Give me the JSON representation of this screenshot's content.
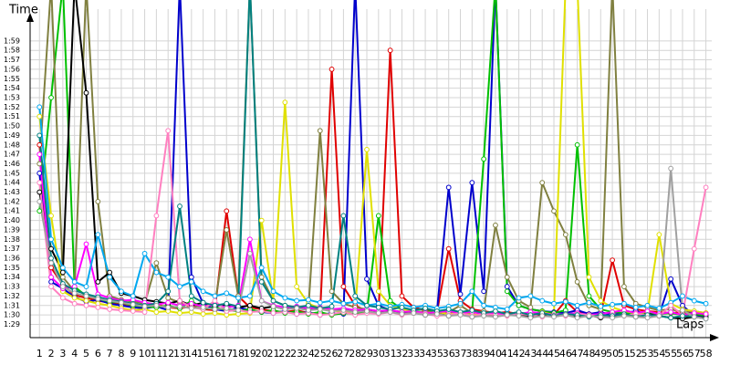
{
  "chart_data": {
    "type": "line",
    "y_label": "Time",
    "x_label": "Laps",
    "grid": true,
    "x": [
      1,
      2,
      3,
      4,
      5,
      6,
      7,
      8,
      9,
      10,
      11,
      12,
      13,
      14,
      15,
      16,
      17,
      18,
      19,
      20,
      21,
      22,
      23,
      24,
      25,
      26,
      27,
      28,
      29,
      30,
      31,
      32,
      33,
      34,
      35,
      36,
      37,
      38,
      39,
      40,
      41,
      42,
      43,
      44,
      45,
      46,
      47,
      48,
      49,
      50,
      51,
      52,
      53,
      54,
      55,
      56,
      57,
      58
    ],
    "xlim": [
      0.2,
      58.5
    ],
    "xticks": [
      1,
      2,
      3,
      4,
      5,
      6,
      7,
      8,
      9,
      10,
      11,
      12,
      13,
      14,
      15,
      16,
      17,
      18,
      19,
      20,
      21,
      22,
      23,
      24,
      25,
      26,
      27,
      28,
      29,
      30,
      31,
      32,
      33,
      34,
      35,
      36,
      37,
      38,
      39,
      40,
      41,
      42,
      43,
      44,
      45,
      46,
      47,
      48,
      49,
      50,
      51,
      52,
      53,
      54,
      55,
      56,
      57,
      58
    ],
    "ylim": [
      87.6,
      121.4
    ],
    "yticks": [
      {
        "value": 89,
        "label": "1:29"
      },
      {
        "value": 90,
        "label": "1:30"
      },
      {
        "value": 91,
        "label": "1:31"
      },
      {
        "value": 92,
        "label": "1:32"
      },
      {
        "value": 93,
        "label": "1:33"
      },
      {
        "value": 94,
        "label": "1:34"
      },
      {
        "value": 95,
        "label": "1:35"
      },
      {
        "value": 96,
        "label": "1:36"
      },
      {
        "value": 97,
        "label": "1:37"
      },
      {
        "value": 98,
        "label": "1:38"
      },
      {
        "value": 99,
        "label": "1:39"
      },
      {
        "value": 100,
        "label": "1:40"
      },
      {
        "value": 101,
        "label": "1:41"
      },
      {
        "value": 102,
        "label": "1:42"
      },
      {
        "value": 103,
        "label": "1:43"
      },
      {
        "value": 104,
        "label": "1:44"
      },
      {
        "value": 105,
        "label": "1:45"
      },
      {
        "value": 106,
        "label": "1:46"
      },
      {
        "value": 107,
        "label": "1:47"
      },
      {
        "value": 108,
        "label": "1:48"
      },
      {
        "value": 109,
        "label": "1:49"
      },
      {
        "value": 110,
        "label": "1:50"
      },
      {
        "value": 111,
        "label": "1:51"
      },
      {
        "value": 112,
        "label": "1:52"
      },
      {
        "value": 113,
        "label": "1:53"
      },
      {
        "value": 114,
        "label": "1:54"
      },
      {
        "value": 115,
        "label": "1:55"
      },
      {
        "value": 116,
        "label": "1:56"
      },
      {
        "value": 117,
        "label": "1:57"
      },
      {
        "value": 118,
        "label": "1:58"
      },
      {
        "value": 119,
        "label": "1:59"
      }
    ],
    "series": [
      {
        "color": "#e00000",
        "values": [
          108,
          95,
          93.2,
          92.1,
          91.8,
          91.5,
          91.3,
          91.2,
          91.0,
          90.9,
          91.1,
          90.8,
          90.7,
          90.9,
          90.6,
          90.5,
          101,
          92.0,
          90.8,
          90.6,
          90.4,
          90.3,
          90.5,
          90.2,
          90.1,
          116,
          93,
          91.0,
          90.4,
          90.2,
          118,
          92,
          90.8,
          90.5,
          90.3,
          97,
          91.5,
          90.6,
          90.4,
          90.2,
          90.3,
          90.1,
          90.0,
          90.2,
          90.0,
          91.5,
          90.3,
          90.1,
          90.0,
          95.8,
          91.0,
          90.6,
          90.4,
          90.3,
          90.2,
          90.3,
          90.1,
          90.0
        ]
      },
      {
        "color": "#0000cc",
        "values": [
          105,
          93.5,
          92.8,
          91.9,
          91.4,
          91.6,
          91.2,
          91.0,
          90.8,
          90.7,
          90.9,
          90.5,
          125,
          94,
          91.2,
          90.6,
          90.4,
          90.8,
          90.5,
          90.3,
          90.2,
          90.4,
          90.1,
          90.3,
          90.0,
          90.2,
          90.1,
          125,
          93.8,
          91.0,
          90.5,
          90.3,
          90.2,
          90.1,
          90.4,
          103.5,
          92.2,
          104,
          92.5,
          125,
          93,
          91.0,
          90.6,
          90.4,
          90.3,
          90.2,
          90.5,
          90.1,
          90.3,
          90.0,
          90.2,
          90.4,
          90.1,
          90.0,
          93.8,
          91.0,
          89.9,
          89.8
        ]
      },
      {
        "color": "#00c000",
        "values": [
          101,
          113,
          125,
          93,
          92.0,
          91.7,
          91.4,
          91.3,
          91.0,
          90.9,
          90.8,
          91.0,
          90.7,
          91.5,
          90.6,
          90.8,
          90.5,
          90.4,
          90.6,
          90.3,
          90.5,
          90.2,
          90.4,
          90.1,
          90.3,
          90.0,
          90.2,
          90.1,
          90.3,
          100.5,
          91.5,
          90.6,
          90.4,
          90.3,
          90.5,
          90.2,
          90.1,
          90.3,
          106.5,
          125,
          92.5,
          91.0,
          90.6,
          90.4,
          90.2,
          90.5,
          108,
          92,
          90.6,
          90.3,
          90.2,
          90.0,
          90.3,
          90.1,
          90.2,
          90.0,
          90.1,
          89.9
        ]
      },
      {
        "color": "#808040",
        "values": [
          106,
          125,
          94,
          92.5,
          125,
          102,
          92.0,
          91.6,
          91.4,
          91.2,
          95.5,
          91.8,
          91.3,
          91.0,
          90.9,
          91.1,
          99,
          92,
          125,
          94,
          91.5,
          91.0,
          90.8,
          90.6,
          109.5,
          92.5,
          91.2,
          90.8,
          90.6,
          90.4,
          90.5,
          90.3,
          90.2,
          90.4,
          90.1,
          90.3,
          91.0,
          90.2,
          90.4,
          99.5,
          94,
          91.5,
          90.8,
          104,
          101,
          98.5,
          93.5,
          91.0,
          90.6,
          125,
          93,
          91.2,
          90.8,
          90.5,
          90.6,
          90.3,
          90.4,
          90.2
        ]
      },
      {
        "color": "#000000",
        "values": [
          103,
          97,
          94.5,
          125,
          113.5,
          93.5,
          94.5,
          92.3,
          92.0,
          91.6,
          91.4,
          91.2,
          91.5,
          91.0,
          91.3,
          90.9,
          91.1,
          90.8,
          91.0,
          90.7,
          90.9,
          90.6,
          90.8,
          90.5,
          90.7,
          90.4,
          90.6,
          90.3,
          90.5,
          90.2,
          90.4,
          90.1,
          90.3,
          90.0,
          90.2,
          89.9,
          90.1,
          89.8,
          90.0,
          89.9,
          90.1,
          90.0,
          89.8,
          90.0,
          89.9,
          90.1,
          89.8,
          90.0,
          89.7,
          89.9,
          90.0,
          89.8,
          90.1,
          89.9,
          89.7,
          89.6,
          89.8,
          89.7
        ]
      },
      {
        "color": "#e0e000",
        "values": [
          111,
          100.5,
          92.5,
          91.8,
          91.5,
          91.2,
          91.0,
          90.7,
          90.5,
          90.6,
          90.3,
          90.4,
          90.2,
          90.3,
          90.1,
          90.2,
          90.0,
          90.1,
          90.2,
          100,
          91.5,
          112.5,
          93,
          91.2,
          90.7,
          90.5,
          90.3,
          90.4,
          107.5,
          92.5,
          91.0,
          90.6,
          90.4,
          90.2,
          90.3,
          90.1,
          90.2,
          90.0,
          90.1,
          90.3,
          90.0,
          90.2,
          90.1,
          90.3,
          90.0,
          125,
          125,
          94,
          91.5,
          90.8,
          90.4,
          90.2,
          90.3,
          98.5,
          91.2,
          90.6,
          90.4,
          90.2
        ]
      },
      {
        "color": "#ff00ff",
        "values": [
          107,
          94,
          92.8,
          93,
          97.5,
          92.2,
          91.8,
          91.5,
          91.6,
          91.3,
          91.1,
          91.3,
          91.0,
          91.2,
          90.9,
          91.1,
          90.8,
          91.0,
          98,
          91.5,
          91.0,
          90.8,
          90.9,
          90.7,
          90.8,
          90.6,
          90.7,
          90.5,
          90.6,
          90.4,
          90.5,
          90.3,
          90.4,
          90.2,
          90.3,
          90.4,
          90.2,
          90.3,
          90.1,
          90.2,
          90.0,
          90.1,
          90.3,
          90.2,
          90.0,
          90.1,
          90.2,
          90.0,
          90.1,
          90.3,
          90.5,
          90.2,
          90.4,
          90.1,
          90.3,
          90.0,
          90.2,
          90.1
        ]
      },
      {
        "color": "#00a8f0",
        "values": [
          112,
          98,
          95,
          93.5,
          93,
          98.5,
          94,
          92.5,
          92.0,
          96.5,
          94.5,
          94.0,
          93,
          93.5,
          92.5,
          92.0,
          92.3,
          91.8,
          92.0,
          95,
          92.5,
          91.8,
          91.5,
          91.6,
          91.3,
          91.5,
          91.2,
          91.4,
          91.0,
          91.2,
          90.9,
          91.1,
          90.8,
          91.0,
          90.7,
          90.9,
          91.2,
          92.5,
          91.0,
          90.8,
          90.6,
          91.8,
          92.0,
          91.5,
          91.2,
          91.4,
          91.0,
          91.3,
          90.9,
          91.1,
          91.2,
          90.8,
          91.0,
          90.7,
          91.3,
          92.0,
          91.5,
          91.2
        ]
      },
      {
        "color": "#ff80c0",
        "values": [
          104,
          93,
          91.8,
          91.2,
          91.0,
          90.8,
          90.6,
          90.5,
          90.4,
          90.3,
          100.5,
          109.5,
          91.5,
          90.8,
          90.6,
          91.5,
          90.4,
          90.5,
          90.3,
          90.4,
          90.2,
          90.3,
          90.1,
          90.2,
          90.0,
          90.1,
          90.3,
          90.0,
          90.2,
          90.1,
          90.3,
          90.0,
          90.2,
          90.1,
          89.9,
          90.0,
          90.2,
          89.9,
          90.1,
          90.0,
          89.9,
          90.1,
          90.0,
          89.8,
          90.0,
          89.9,
          90.1,
          90.0,
          89.8,
          90.0,
          89.9,
          90.1,
          90.0,
          89.9,
          91.0,
          90.0,
          97,
          103.5
        ]
      },
      {
        "color": "#008080",
        "values": [
          109,
          96,
          93.3,
          92.6,
          92.2,
          91.9,
          91.6,
          91.4,
          91.2,
          91.0,
          91.2,
          92.5,
          101.5,
          92,
          91.3,
          91.0,
          91.2,
          90.9,
          125,
          93.5,
          91.5,
          91.0,
          90.8,
          91.0,
          90.7,
          90.9,
          100.5,
          92,
          91.0,
          90.8,
          90.6,
          90.8,
          90.5,
          90.7,
          90.4,
          90.6,
          90.3,
          90.5,
          90.2,
          90.4,
          90.1,
          90.3,
          90.0,
          90.2,
          89.9,
          90.1,
          90.0,
          89.8,
          90.0,
          89.9,
          90.1,
          89.8,
          90.0,
          89.9,
          89.7,
          89.9,
          89.8,
          89.6
        ]
      },
      {
        "color": "#a0a0a0",
        "values": [
          102,
          95.5,
          93.0,
          92.3,
          92.0,
          91.7,
          91.5,
          91.3,
          91.1,
          90.9,
          91.0,
          90.8,
          90.9,
          90.7,
          90.8,
          90.6,
          90.7,
          90.5,
          96.5,
          91.5,
          90.9,
          90.6,
          90.7,
          90.5,
          90.6,
          90.4,
          90.5,
          90.3,
          90.4,
          90.2,
          90.3,
          90.1,
          90.2,
          90.0,
          90.1,
          89.9,
          90.0,
          89.8,
          89.9,
          89.8,
          90.0,
          89.9,
          89.7,
          89.9,
          89.8,
          90.0,
          89.7,
          89.9,
          89.8,
          89.7,
          89.9,
          89.8,
          89.7,
          89.9,
          105.5,
          90.5,
          89.8,
          89.6
        ]
      }
    ]
  }
}
